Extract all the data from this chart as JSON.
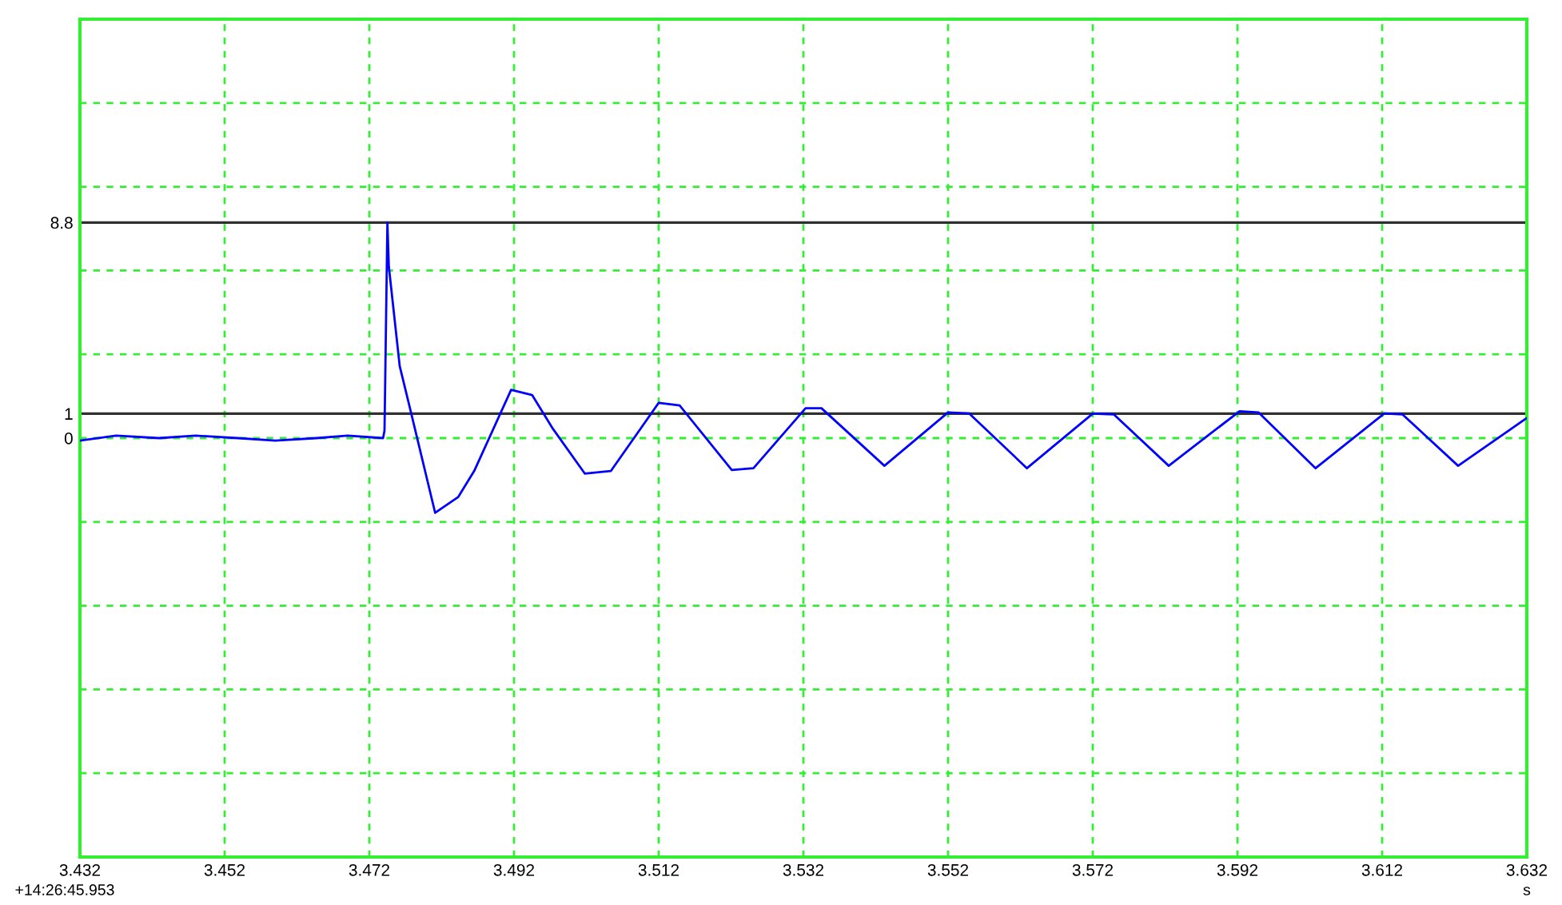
{
  "chart_data": {
    "type": "line",
    "xlabel": "s",
    "annotations": [
      "+14:26:45.953"
    ],
    "x": [
      3.432,
      3.437,
      3.4429,
      3.448,
      3.4538,
      3.459,
      3.4647,
      3.469,
      3.4739,
      3.4741,
      3.4745,
      3.4747,
      3.4762,
      3.4778,
      3.4811,
      3.4843,
      3.4865,
      3.4916,
      3.4945,
      3.4974,
      3.5018,
      3.5054,
      3.512,
      3.5149,
      3.5221,
      3.5251,
      3.5323,
      3.5345,
      3.5432,
      3.552,
      3.5549,
      3.5629,
      3.572,
      3.5749,
      3.5825,
      3.5923,
      3.5949,
      3.6028,
      3.6123,
      3.6148,
      3.6225,
      3.6319
    ],
    "series": [
      {
        "color": "#0000ff",
        "values": [
          -0.1,
          0.1,
          0.0,
          0.1,
          0.0,
          -0.1,
          0.0,
          0.1,
          0.0,
          0.3,
          8.8,
          7.0,
          2.94,
          1.0,
          -3.05,
          -2.4,
          -1.34,
          1.97,
          1.76,
          0.37,
          -1.45,
          -1.34,
          1.44,
          1.33,
          -1.3,
          -1.23,
          1.22,
          1.22,
          -1.13,
          1.05,
          1.01,
          -1.23,
          1.0,
          0.97,
          -1.13,
          1.1,
          1.05,
          -1.23,
          1.01,
          0.97,
          -1.13,
          0.8
        ]
      }
    ],
    "xlim": [
      3.432,
      3.632
    ],
    "xticks": [
      3.432,
      3.452,
      3.472,
      3.492,
      3.512,
      3.532,
      3.552,
      3.572,
      3.592,
      3.612,
      3.632
    ],
    "ylim": [
      -17.1,
      17.1
    ],
    "yticks": [
      {
        "value": -13.68,
        "label": null
      },
      {
        "value": -10.26,
        "label": null
      },
      {
        "value": -6.84,
        "label": null
      },
      {
        "value": -3.42,
        "label": null
      },
      0,
      1,
      {
        "value": 3.42,
        "label": null
      },
      {
        "value": 6.84,
        "label": null
      },
      8.8,
      {
        "value": 10.26,
        "label": null
      },
      {
        "value": 13.68,
        "label": null
      }
    ],
    "grid": true,
    "line_style": "solid",
    "marker": "none",
    "legend": false
  }
}
